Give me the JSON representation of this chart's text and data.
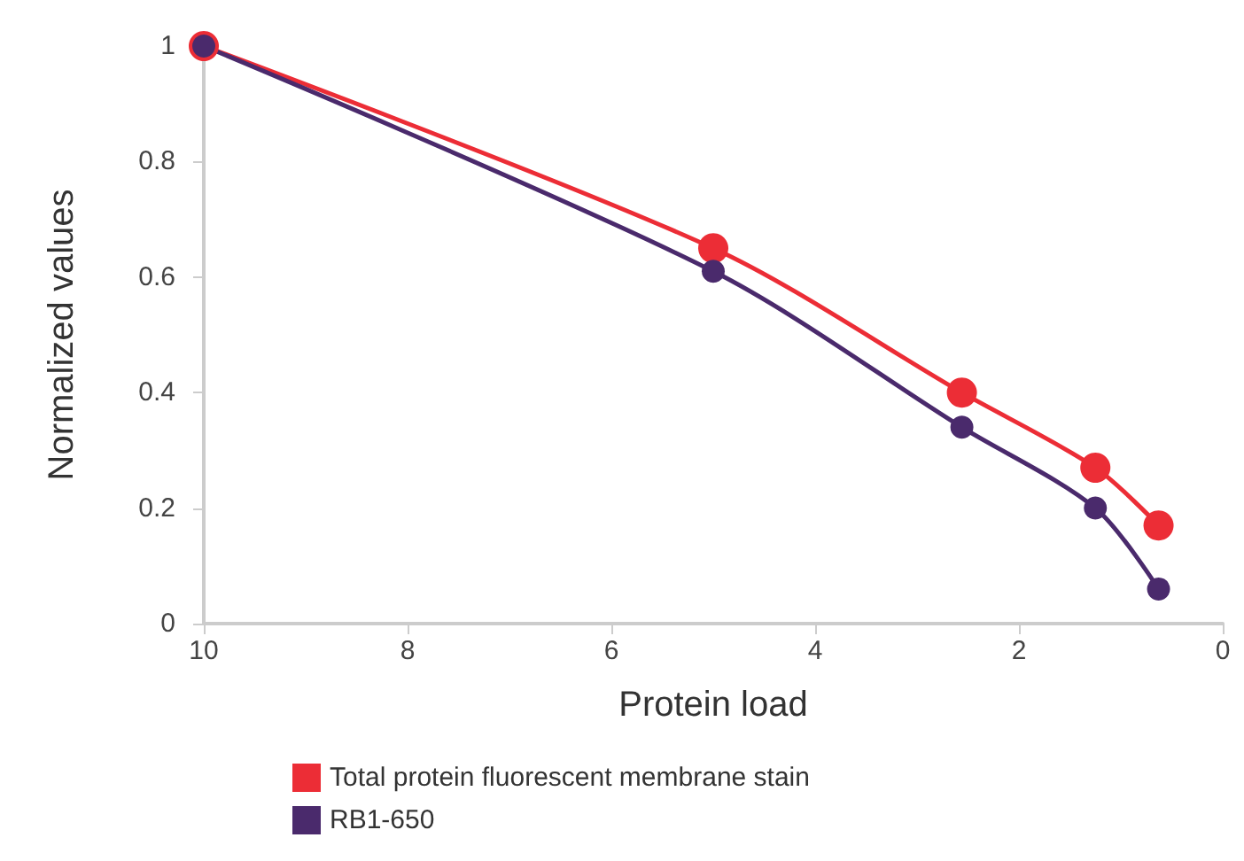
{
  "chart_data": {
    "type": "line",
    "xlabel": "Protein load",
    "ylabel": "Normalized values",
    "x": [
      10,
      5,
      2.56,
      1.25,
      0.63
    ],
    "series": [
      {
        "name": "Total protein fluorescent membrane stain",
        "color": "#ec2d36",
        "values": [
          1.0,
          0.65,
          0.4,
          0.27,
          0.17
        ]
      },
      {
        "name": "RB1-650",
        "color": "#4a2a6c",
        "values": [
          1.0,
          0.61,
          0.34,
          0.2,
          0.06
        ]
      }
    ],
    "xlim": [
      10,
      0
    ],
    "xticks": [
      10,
      8,
      6,
      4,
      2,
      0
    ],
    "ylim": [
      0,
      1
    ],
    "yticks": [
      0,
      0.2,
      0.4,
      0.6,
      0.8,
      1
    ],
    "grid": false,
    "legend": "bottom",
    "marker": "circle",
    "line_style": "solid"
  }
}
